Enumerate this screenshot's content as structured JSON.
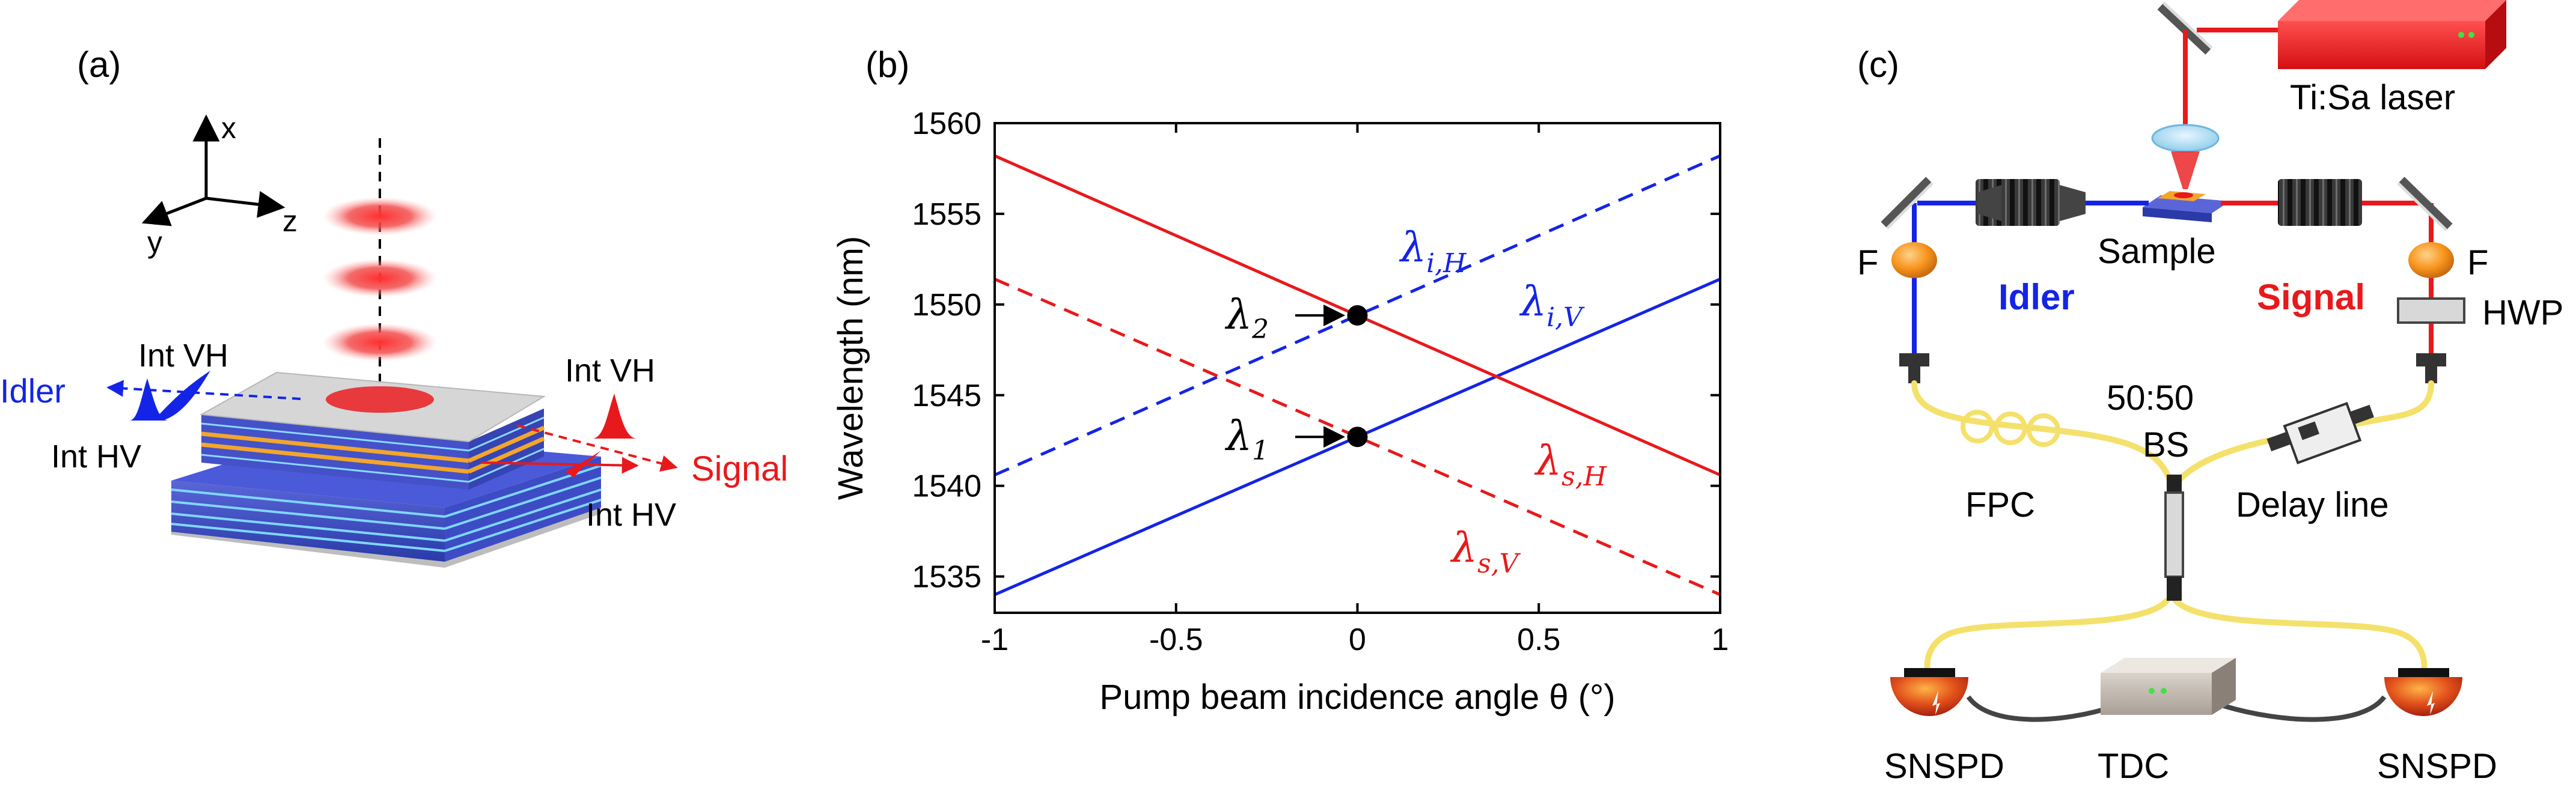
{
  "panels": {
    "a": {
      "tag": "(a)",
      "axes": {
        "x": "x",
        "y": "y",
        "z": "z"
      },
      "idler_left": "Idler",
      "int_vh_left": "Int VH",
      "int_hv_left": "Int HV",
      "int_vh_right": "Int VH",
      "signal_right": "Signal",
      "int_hv_right": "Int HV"
    },
    "b": {
      "tag": "(b)",
      "lambda1": "λ",
      "lambda1_sub": "1",
      "lambda2": "λ",
      "lambda2_sub": "2"
    },
    "c": {
      "tag": "(c)",
      "laser": "Ti:Sa laser",
      "sample": "Sample",
      "filter_left": "F",
      "filter_right": "F",
      "idler": "Idler",
      "signal": "Signal",
      "hwp": "HWP",
      "bs_ratio": "50:50",
      "bs": "BS",
      "fpc": "FPC",
      "delay": "Delay line",
      "snspd_left": "SNSPD",
      "tdc": "TDC",
      "snspd_right": "SNSPD"
    }
  },
  "colors": {
    "red": "#e8191c",
    "blue": "#1424e6"
  },
  "chart_data": {
    "type": "line",
    "title": "",
    "xlabel": "Pump beam incidence angle θ (°)",
    "ylabel": "Wavelength (nm)",
    "xlim": [
      -1,
      1
    ],
    "ylim": [
      1533,
      1560
    ],
    "xticks": [
      -1,
      -0.5,
      0,
      0.5,
      1
    ],
    "xtick_labels": [
      "-1",
      "-0.5",
      "0",
      "0.5",
      "1"
    ],
    "yticks": [
      1535,
      1540,
      1545,
      1550,
      1555,
      1560
    ],
    "ytick_labels": [
      "1535",
      "1540",
      "1545",
      "1550",
      "1555",
      "1560"
    ],
    "series": [
      {
        "name": "λi,H",
        "label_main": "λ",
        "label_sub": "i,H",
        "color": "#1424e6",
        "dash": true,
        "x": [
          -1,
          1
        ],
        "y": [
          1540.6,
          1558.2
        ]
      },
      {
        "name": "λi,V",
        "label_main": "λ",
        "label_sub": "i,V",
        "color": "#1424e6",
        "dash": false,
        "x": [
          -1,
          1
        ],
        "y": [
          1534.0,
          1551.4
        ]
      },
      {
        "name": "λs,H",
        "label_main": "λ",
        "label_sub": "s,H",
        "color": "#e8191c",
        "dash": false,
        "x": [
          -1,
          1
        ],
        "y": [
          1558.2,
          1540.6
        ]
      },
      {
        "name": "λs,V",
        "label_main": "λ",
        "label_sub": "s,V",
        "color": "#e8191c",
        "dash": true,
        "x": [
          -1,
          1
        ],
        "y": [
          1551.4,
          1534.0
        ]
      }
    ],
    "points": [
      {
        "name": "lambda1",
        "x": 0,
        "y": 1542.7
      },
      {
        "name": "lambda2",
        "x": 0,
        "y": 1549.4
      }
    ]
  }
}
